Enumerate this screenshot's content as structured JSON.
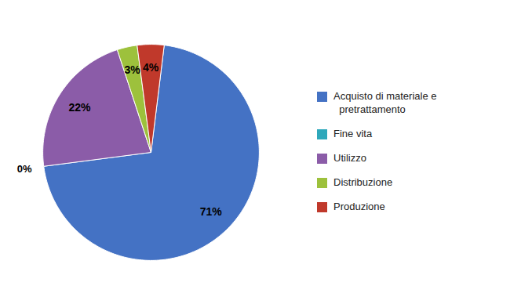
{
  "chart_data": {
    "type": "pie",
    "categories": [
      "Acquisto di materiale e\n  pretrattamento",
      "Fine vita",
      "Utilizzo",
      "Distribuzione",
      "Produzione"
    ],
    "values": [
      71,
      0,
      22,
      3,
      4
    ],
    "value_labels": [
      "71%",
      "0%",
      "22%",
      "3%",
      "4%"
    ],
    "colors": [
      "#4472C4",
      "#2EA8BB",
      "#8B5CA8",
      "#9DC13C",
      "#C0392B"
    ],
    "data_labels": true,
    "legend": "right",
    "tick_labels": false
  }
}
